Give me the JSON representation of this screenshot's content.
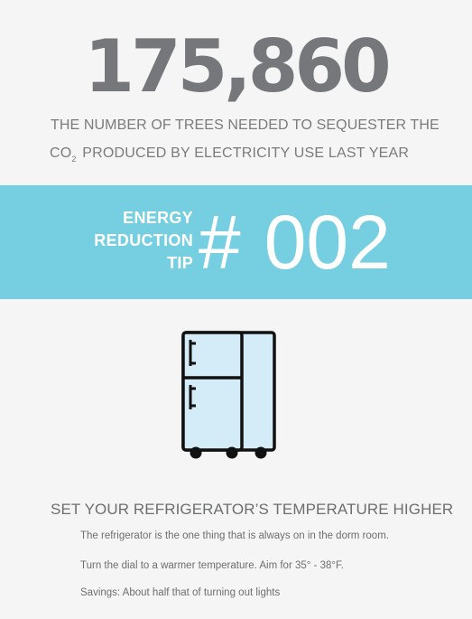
{
  "stat": {
    "number": "175,860",
    "line1": "THE NUMBER OF TREES NEEDED TO SEQUESTER THE",
    "line2_prefix": "CO",
    "line2_subscript": "2",
    "line2_rest": "PRODUCED BY ELECTRICITY USE LAST YEAR"
  },
  "tip_banner": {
    "word1": "ENERGY",
    "word2": "REDUCTION",
    "word3": "TIP",
    "hash": "#",
    "number": "002"
  },
  "icons": {
    "main": "refrigerator-icon"
  },
  "tip": {
    "title": "SET YOUR REFRIGERATOR’S TEMPERATURE HIGHER",
    "lines": [
      "The refrigerator is the one thing that is always on in the dorm room.",
      "Turn the dial to a warmer temperature. Aim for 35° - 38°F.",
      "Savings: About half that of turning out lights"
    ]
  },
  "colors": {
    "background": "#f4f5f4",
    "banner": "#75cfe0",
    "stat_number": "#76777a",
    "text": "#6d6e70",
    "fridge_fill": "#d3ecf7",
    "fridge_stroke": "#111111"
  }
}
